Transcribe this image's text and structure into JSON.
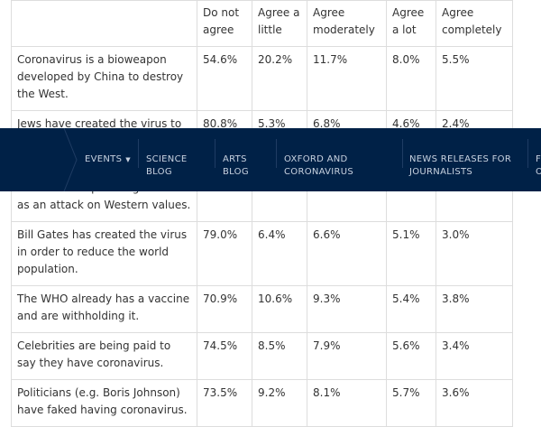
{
  "table": {
    "headers": [
      "",
      "Do not agree",
      "Agree a little",
      "Agree moderately",
      "Agree a lot",
      "Agree completely"
    ],
    "rows": [
      {
        "statement": "Coronavirus is a bioweapon developed by China to destroy the West.",
        "values": [
          "54.6%",
          "20.2%",
          "11.7%",
          "8.0%",
          "5.5%"
        ]
      },
      {
        "statement": "Jews have created the virus to collapse the economy for financial gain.",
        "values": [
          "80.8%",
          "5.3%",
          "6.8%",
          "4.6%",
          "2.4%"
        ]
      },
      {
        "statement": "Muslims are spreading the virus as an attack on Western values.",
        "values": [
          "",
          "",
          "",
          "",
          ""
        ]
      },
      {
        "statement": "Bill Gates has created the virus in order to reduce the world population.",
        "values": [
          "79.0%",
          "6.4%",
          "6.6%",
          "5.1%",
          "3.0%"
        ]
      },
      {
        "statement": "The WHO already has a vaccine and are withholding it.",
        "values": [
          "70.9%",
          "10.6%",
          "9.3%",
          "5.4%",
          "3.8%"
        ]
      },
      {
        "statement": "Celebrities are being paid to say they have coronavirus.",
        "values": [
          "74.5%",
          "8.5%",
          "7.9%",
          "5.6%",
          "3.4%"
        ]
      },
      {
        "statement": "Politicians (e.g. Boris Johnson) have faked having coronavirus.",
        "values": [
          "73.5%",
          "9.2%",
          "8.1%",
          "5.7%",
          "3.6%"
        ]
      }
    ]
  },
  "nav": {
    "items": [
      {
        "label": "EVENTS",
        "has_dropdown": true
      },
      {
        "label": "SCIENCE\nBLOG"
      },
      {
        "label": "ARTS\nBLOG"
      },
      {
        "label": "OXFORD AND\nCORONAVIRUS"
      },
      {
        "label": "NEWS RELEASES FOR\nJOURNALISTS"
      },
      {
        "label": "F\nO"
      }
    ],
    "caret": "▼",
    "background": "#002147"
  }
}
